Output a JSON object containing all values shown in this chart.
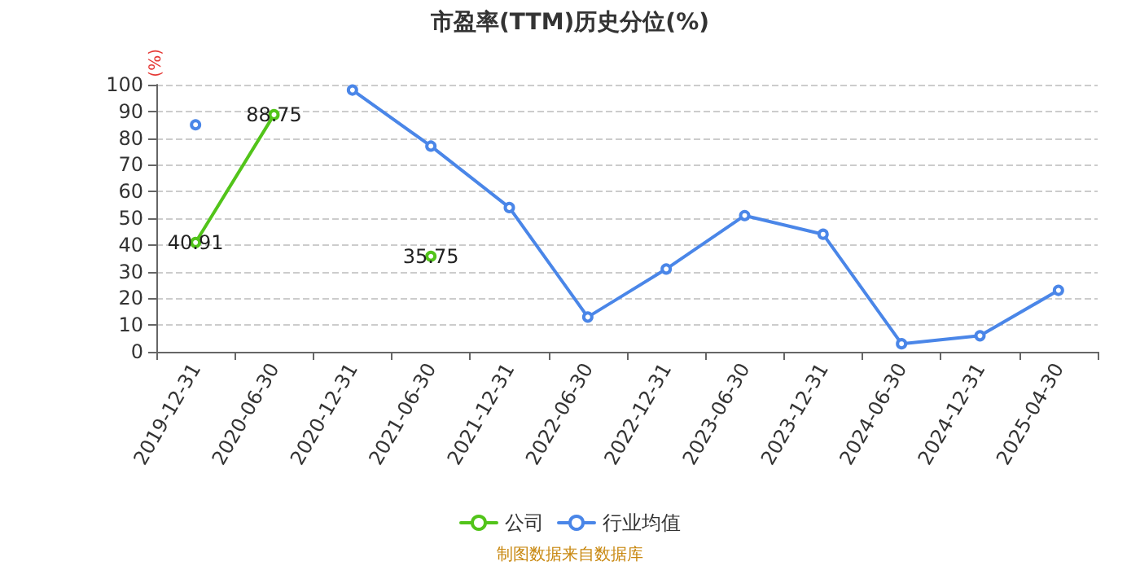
{
  "chart_data": {
    "type": "line",
    "title": "市盈率(TTM)历史分位(%)",
    "ylabel": "(%)",
    "categories": [
      "2019-12-31",
      "2020-06-30",
      "2020-12-31",
      "2021-06-30",
      "2021-12-31",
      "2022-06-30",
      "2022-12-31",
      "2023-06-30",
      "2023-12-31",
      "2024-06-30",
      "2024-12-31",
      "2025-04-30"
    ],
    "series": [
      {
        "name": "公司",
        "color": "#52c41a",
        "values": [
          40.91,
          88.75,
          null,
          35.75,
          null,
          null,
          null,
          null,
          null,
          null,
          null,
          null
        ],
        "value_labels": [
          "40.91",
          "88.75",
          null,
          "35.75",
          null,
          null,
          null,
          null,
          null,
          null,
          null,
          null
        ]
      },
      {
        "name": "行业均值",
        "color": "#4a86e8",
        "values": [
          85,
          null,
          98,
          77,
          54,
          13,
          31,
          51,
          44,
          3,
          6,
          23
        ]
      }
    ],
    "ylim": [
      0,
      100
    ],
    "yticks": [
      0,
      10,
      20,
      30,
      40,
      50,
      60,
      70,
      80,
      90,
      100
    ],
    "grid": "y",
    "legend": "bottom",
    "marker": "circle",
    "line_style": "solid",
    "annotations": [
      "制图数据来自数据库"
    ]
  }
}
